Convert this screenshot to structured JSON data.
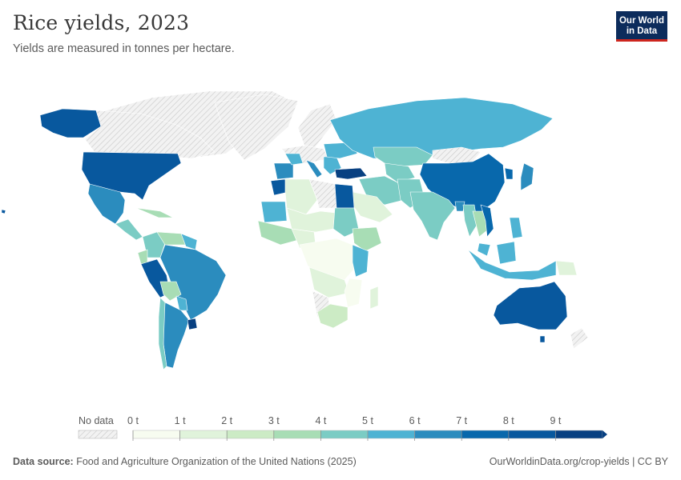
{
  "header": {
    "title": "Rice yields, 2023",
    "subtitle": "Yields are measured in tonnes per hectare.",
    "logo_line1": "Our World",
    "logo_line2": "in Data"
  },
  "legend": {
    "no_data_label": "No data",
    "ticks": [
      "0 t",
      "1 t",
      "2 t",
      "3 t",
      "4 t",
      "5 t",
      "6 t",
      "7 t",
      "8 t",
      "9 t"
    ],
    "colors": [
      "#f7fcf0",
      "#e0f3db",
      "#ccebc5",
      "#a8ddb5",
      "#7bccc4",
      "#4eb3d3",
      "#2b8cbe",
      "#0868ac",
      "#08589e",
      "#084081"
    ],
    "no_data_color": "#dcdcdc"
  },
  "footer": {
    "source_label": "Data source:",
    "source_text": "Food and Agriculture Organization of the United Nations (2025)",
    "url_license": "OurWorldinData.org/crop-yields | CC BY"
  }
}
